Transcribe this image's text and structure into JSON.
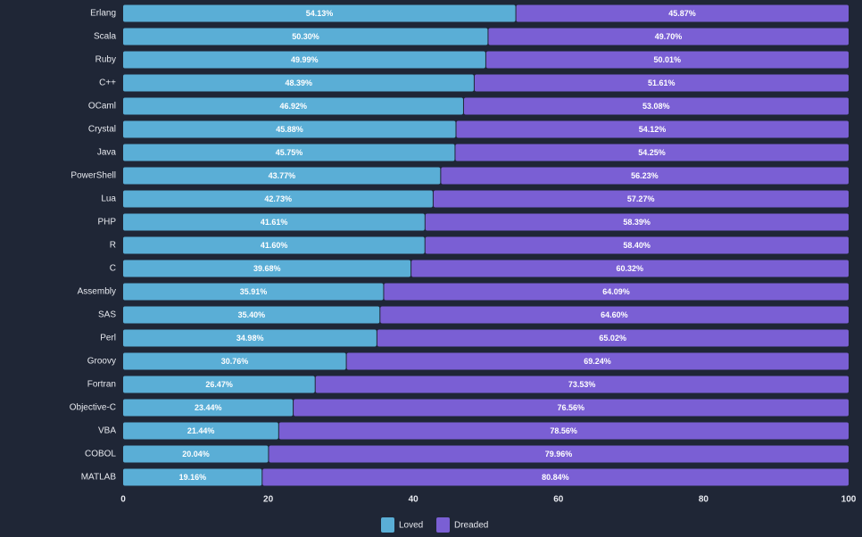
{
  "chart_data": {
    "type": "bar",
    "orientation": "horizontal",
    "stacked": true,
    "title": "",
    "xlabel": "",
    "ylabel": "",
    "xlim": [
      0,
      100
    ],
    "xticks": [
      0,
      20,
      40,
      60,
      80,
      100
    ],
    "grid": false,
    "legend_position": "bottom",
    "categories": [
      "Erlang",
      "Scala",
      "Ruby",
      "C++",
      "OCaml",
      "Crystal",
      "Java",
      "PowerShell",
      "Lua",
      "PHP",
      "R",
      "C",
      "Assembly",
      "SAS",
      "Perl",
      "Groovy",
      "Fortran",
      "Objective-C",
      "VBA",
      "COBOL",
      "MATLAB"
    ],
    "series": [
      {
        "name": "Loved",
        "color": "#5aaed6",
        "values": [
          54.13,
          50.3,
          49.99,
          48.39,
          46.92,
          45.88,
          45.75,
          43.77,
          42.73,
          41.61,
          41.6,
          39.68,
          35.91,
          35.4,
          34.98,
          30.76,
          26.47,
          23.44,
          21.44,
          20.04,
          19.16
        ],
        "labels": [
          "54.13%",
          "50.30%",
          "49.99%",
          "48.39%",
          "46.92%",
          "45.88%",
          "45.75%",
          "43.77%",
          "42.73%",
          "41.61%",
          "41.60%",
          "39.68%",
          "35.91%",
          "35.40%",
          "34.98%",
          "30.76%",
          "26.47%",
          "23.44%",
          "21.44%",
          "20.04%",
          "19.16%"
        ]
      },
      {
        "name": "Dreaded",
        "color": "#7a5fd4",
        "values": [
          45.87,
          49.7,
          50.01,
          51.61,
          53.08,
          54.12,
          54.25,
          56.23,
          57.27,
          58.39,
          58.4,
          60.32,
          64.09,
          64.6,
          65.02,
          69.24,
          73.53,
          76.56,
          78.56,
          79.96,
          80.84
        ],
        "labels": [
          "45.87%",
          "49.70%",
          "50.01%",
          "51.61%",
          "53.08%",
          "54.12%",
          "54.25%",
          "56.23%",
          "57.27%",
          "58.39%",
          "58.40%",
          "60.32%",
          "64.09%",
          "64.60%",
          "65.02%",
          "69.24%",
          "73.53%",
          "76.56%",
          "78.56%",
          "79.96%",
          "80.84%"
        ]
      }
    ]
  }
}
